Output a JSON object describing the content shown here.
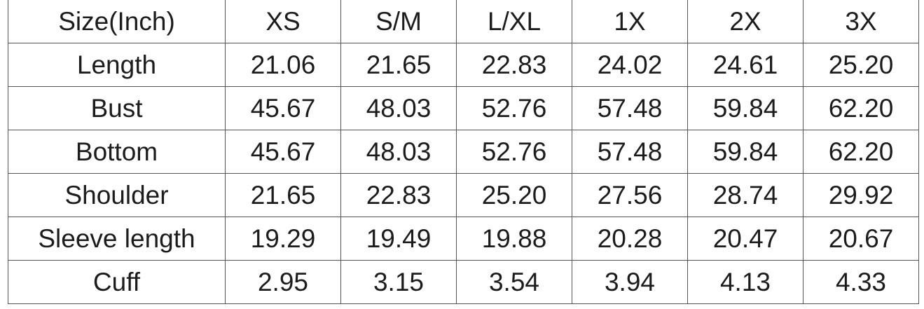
{
  "table": {
    "header": [
      "Size(Inch)",
      "XS",
      "S/M",
      "L/XL",
      "1X",
      "2X",
      "3X"
    ],
    "rows": [
      [
        "Length",
        "21.06",
        "21.65",
        "22.83",
        "24.02",
        "24.61",
        "25.20"
      ],
      [
        "Bust",
        "45.67",
        "48.03",
        "52.76",
        "57.48",
        "59.84",
        "62.20"
      ],
      [
        "Bottom",
        "45.67",
        "48.03",
        "52.76",
        "57.48",
        "59.84",
        "62.20"
      ],
      [
        "Shoulder",
        "21.65",
        "22.83",
        "25.20",
        "27.56",
        "28.74",
        "29.92"
      ],
      [
        "Sleeve length",
        "19.29",
        "19.49",
        "19.88",
        "20.28",
        "20.47",
        "20.67"
      ],
      [
        "Cuff",
        "2.95",
        "3.15",
        "3.54",
        "3.94",
        "4.13",
        "4.33"
      ]
    ]
  }
}
